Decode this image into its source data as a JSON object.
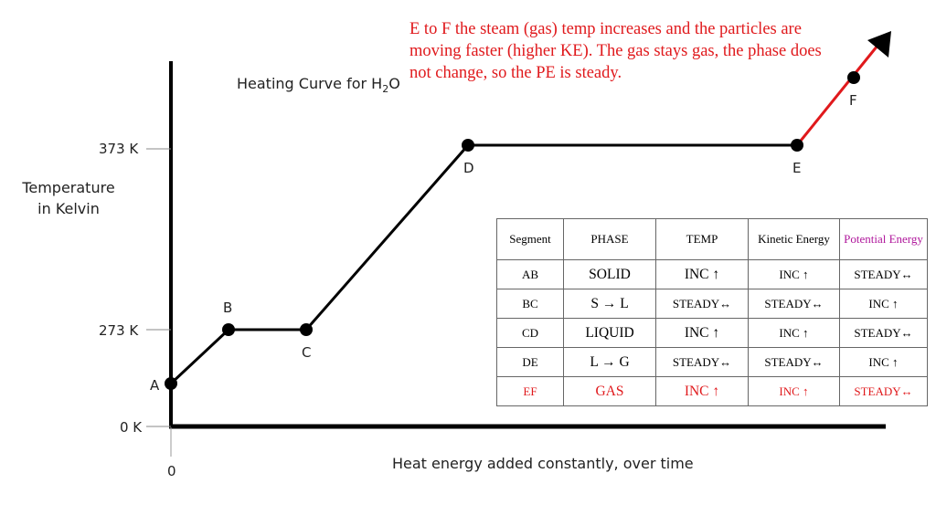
{
  "title": {
    "prefix": "Heating Curve for H",
    "sub": "2",
    "suffix": "O"
  },
  "annotation": "E to F the steam (gas) temp increases and the particles are moving faster (higher KE).  The gas stays gas, the phase does not change, so the PE is steady.",
  "axes": {
    "ylabel_line1": "Temperature",
    "ylabel_line2": "in Kelvin",
    "xlabel": "Heat energy added constantly, over time",
    "origin_x": "0",
    "ticks": [
      "373 K",
      "273 K",
      "0 K"
    ]
  },
  "points": [
    "A",
    "B",
    "C",
    "D",
    "E",
    "F"
  ],
  "colors": {
    "curve": "#000000",
    "gas_segment": "#e0191c",
    "annotation": "#e0191c",
    "potential_header": "#b0189c"
  },
  "table": {
    "headers": [
      "Segment",
      "PHASE",
      "TEMP",
      "Kinetic Energy",
      "Potential Energy"
    ],
    "rows": [
      [
        "AB",
        "SOLID",
        "INC ↑",
        "INC ↑",
        "STEADY↔"
      ],
      [
        "BC",
        "S → L",
        "STEADY↔",
        "STEADY↔",
        "INC ↑"
      ],
      [
        "CD",
        "LIQUID",
        "INC ↑",
        "INC ↑",
        "STEADY↔"
      ],
      [
        "DE",
        "L → G",
        "STEADY↔",
        "STEADY↔",
        "INC ↑"
      ],
      [
        "EF",
        "GAS",
        "INC ↑",
        "INC ↑",
        "STEADY↔"
      ]
    ]
  }
}
